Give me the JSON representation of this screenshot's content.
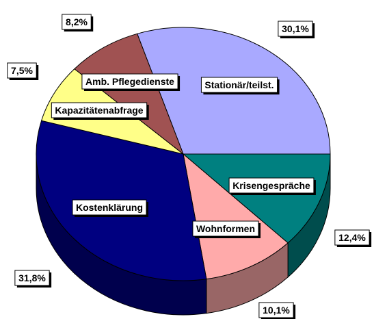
{
  "chart_data": {
    "type": "pie",
    "categories": [
      "Stationär/teilst.",
      "Krisengespräche",
      "Wohnformen",
      "Kostenklärung",
      "Kapazitätenabfrage",
      "Amb. Pflegedienste"
    ],
    "values": [
      30.1,
      12.4,
      10.1,
      31.8,
      7.5,
      8.2
    ],
    "value_labels": [
      "30,1%",
      "12,4%",
      "10,1%",
      "31,8%",
      "7,5%",
      "8,2%"
    ],
    "colors": [
      "#a9a9ff",
      "#008080",
      "#ffaaaa",
      "#000080",
      "#ffff88",
      "#a05252"
    ]
  }
}
